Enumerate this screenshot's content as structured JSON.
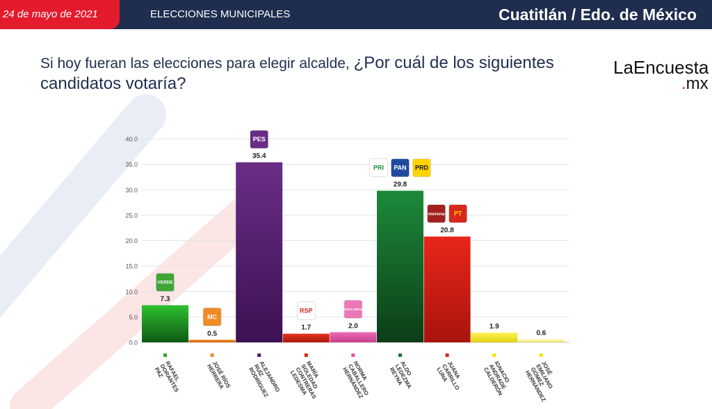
{
  "header": {
    "date": "24 de mayo de 2021",
    "section": "ELECCIONES MUNICIPALES",
    "location": "Cuatitlán / Edo. de México"
  },
  "question": {
    "part1": "Si hoy fueran las elecciones para elegir alcalde, ",
    "part2": "¿Por cuál de los siguientes candidatos votaría?"
  },
  "logo": {
    "main": "LaEncuesta",
    "suffix": ".mx"
  },
  "chart_data": {
    "type": "bar",
    "title": "",
    "xlabel": "",
    "ylabel": "",
    "ylim": [
      0,
      40
    ],
    "yticks": [
      "0.0",
      "5.0",
      "10.0",
      "15.0",
      "20.0",
      "25.0",
      "30.0",
      "35.0",
      "40.0"
    ],
    "grid": true,
    "categories": [
      [
        "RAFAEL",
        "DORANTES",
        "PAZ"
      ],
      [
        "JOSÉ RÍOS",
        "HERRERA"
      ],
      [
        "ALEJANDRO",
        "RUÍZ",
        "RODRÍGUEZ"
      ],
      [
        "MARÍA",
        "SOLEDAD",
        "CONTRERAS",
        "LEDESMA"
      ],
      [
        "NORMA",
        "CABALLERO",
        "HERNÁNDEZ"
      ],
      [
        "ALDO",
        "LEDEZMA",
        "REYNA"
      ],
      [
        "JUANA",
        "CARRILLO",
        "LUNA"
      ],
      [
        "IGNACIO",
        "ANDRADE",
        "CALDERÓN"
      ],
      [
        "JOSÉ",
        "EMILIANO",
        "GÓMEZ",
        "HERNÁNDEZ"
      ]
    ],
    "values": [
      7.3,
      0.5,
      35.4,
      1.7,
      2.0,
      29.8,
      20.8,
      1.9,
      0.6
    ],
    "value_labels": [
      "7.3",
      "0.5",
      "35.4",
      "1.7",
      "2.0",
      "29.8",
      "20.8",
      "1.9",
      "0.6"
    ],
    "bar_colors": [
      [
        "#2fbf2f",
        "#0e5a14"
      ],
      [
        "#f08a24",
        "#d5660d"
      ],
      [
        "#6a2d86",
        "#3c1151"
      ],
      [
        "#e1341f",
        "#b0180e"
      ],
      [
        "#ea6cb3",
        "#c63f8f"
      ],
      [
        "#1c8a3a",
        "#0c3d18"
      ],
      [
        "#e8261a",
        "#a8130d"
      ],
      [
        "#fff45a",
        "#e0cf10"
      ],
      [
        "#fdf7b0",
        "#efe47a"
      ]
    ],
    "marker_colors": [
      "#2eaa2e",
      "#f08a24",
      "#4a1f6a",
      "#d42a1a",
      "#e0559f",
      "#157a30",
      "#d8271b",
      "#f2e600",
      "#f2e600"
    ],
    "party_logos": [
      [
        {
          "text": "VERDE",
          "fg": "#ffffff",
          "bg": "#3fa535"
        }
      ],
      [
        {
          "text": "MC",
          "fg": "#ffffff",
          "bg": "#f08a24"
        }
      ],
      [
        {
          "text": "PES",
          "fg": "#ffffff",
          "bg": "#6a2d86"
        }
      ],
      [
        {
          "text": "RSP",
          "fg": "#d42a1a",
          "bg": "#ffffff"
        }
      ],
      [
        {
          "text": "FUERZA MÉXICO",
          "fg": "#ffffff",
          "bg": "#ec77b6"
        }
      ],
      [
        {
          "text": "PRI",
          "fg": "#1a8a3a",
          "bg": "#ffffff"
        },
        {
          "text": "PAN",
          "fg": "#ffffff",
          "bg": "#1f4aa0"
        },
        {
          "text": "PRD",
          "fg": "#111111",
          "bg": "#ffd400"
        }
      ],
      [
        {
          "text": "morena",
          "fg": "#ffffff",
          "bg": "#a32020"
        },
        {
          "text": "PT",
          "fg": "#ffd400",
          "bg": "#d8271b"
        }
      ],
      [],
      []
    ]
  }
}
